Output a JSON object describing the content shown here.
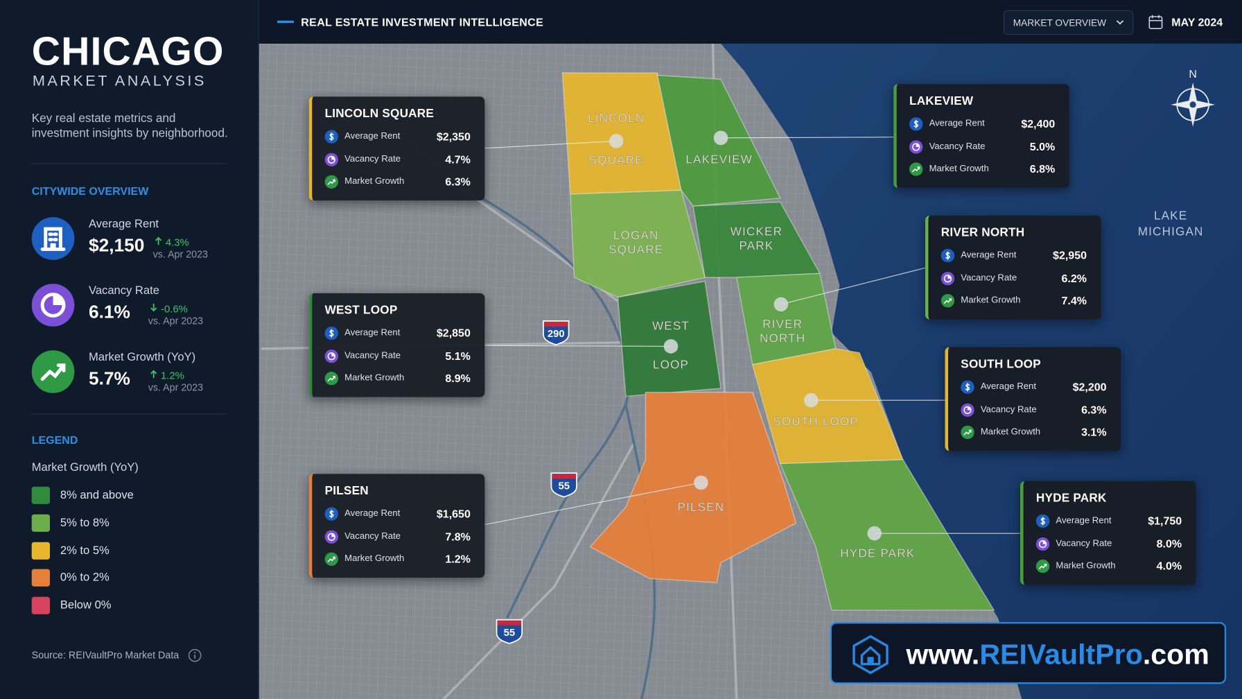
{
  "header": {
    "title": "REAL ESTATE INVESTMENT INTELLIGENCE",
    "dropdown": "MARKET OVERVIEW",
    "date": "MAY 2024"
  },
  "sidebar": {
    "city": "CHICAGO",
    "subtitle": "MARKET ANALYSIS",
    "description": [
      "Key real estate metrics and",
      "investment insights by neighborhood."
    ],
    "overview_title": "CITYWIDE OVERVIEW",
    "metrics": [
      {
        "label": "Average Rent",
        "value": "$2,150",
        "change": "4.3%",
        "comparison": "vs. Apr 2023"
      },
      {
        "label": "Vacancy Rate",
        "value": "6.1%",
        "change": "-0.6%",
        "comparison": "vs. Apr 2023"
      },
      {
        "label": "Market Growth (YoY)",
        "value": "5.7%",
        "change": "1.2%",
        "comparison": "vs. Apr 2023"
      }
    ],
    "legend_title": "LEGEND",
    "legend_subtitle": "Market Growth (YoY)",
    "legend_items": [
      {
        "label": "8% and above",
        "color": "#2f8a3d"
      },
      {
        "label": "5% to 8%",
        "color": "#6cae4c"
      },
      {
        "label": "2% to 5%",
        "color": "#e6b62e"
      },
      {
        "label": "0% to 2%",
        "color": "#e57f3a"
      },
      {
        "label": "Below 0%",
        "color": "#d6435c"
      }
    ],
    "source": "Source: REIVaultPro Market Data"
  },
  "neighborhoods": [
    {
      "name": "LINCOLN SQUARE",
      "metrics": [
        {
          "label": "Average Rent",
          "value": "$2,350"
        },
        {
          "label": "Vacancy Rate",
          "value": "4.7%"
        },
        {
          "label": "Market Growth",
          "value": "6.3%"
        }
      ]
    },
    {
      "name": "LAKEVIEW",
      "metrics": [
        {
          "label": "Average Rent",
          "value": "$2,400"
        },
        {
          "label": "Vacancy Rate",
          "value": "5.0%"
        },
        {
          "label": "Market Growth",
          "value": "6.8%"
        }
      ]
    },
    {
      "name": "WEST LOOP",
      "metrics": [
        {
          "label": "Average Rent",
          "value": "$2,850"
        },
        {
          "label": "Vacancy Rate",
          "value": "5.1%"
        },
        {
          "label": "Market Growth",
          "value": "8.9%"
        }
      ]
    },
    {
      "name": "RIVER NORTH",
      "metrics": [
        {
          "label": "Average Rent",
          "value": "$2,950"
        },
        {
          "label": "Vacancy Rate",
          "value": "6.2%"
        },
        {
          "label": "Market Growth",
          "value": "7.4%"
        }
      ]
    },
    {
      "name": "SOUTH LOOP",
      "metrics": [
        {
          "label": "Average Rent",
          "value": "$2,200"
        },
        {
          "label": "Vacancy Rate",
          "value": "6.3%"
        },
        {
          "label": "Market Growth",
          "value": "3.1%"
        }
      ]
    },
    {
      "name": "PILSEN",
      "metrics": [
        {
          "label": "Average Rent",
          "value": "$1,650"
        },
        {
          "label": "Vacancy Rate",
          "value": "7.8%"
        },
        {
          "label": "Market Growth",
          "value": "1.2%"
        }
      ]
    },
    {
      "name": "HYDE PARK",
      "metrics": [
        {
          "label": "Average Rent",
          "value": "$1,750"
        },
        {
          "label": "Vacancy Rate",
          "value": "8.0%"
        },
        {
          "label": "Market Growth",
          "value": "4.0%"
        }
      ]
    }
  ],
  "map_labels": [
    [
      "LINCOLN",
      "SQUARE"
    ],
    [
      "LAKEVIEW"
    ],
    [
      "LOGAN",
      "SQUARE"
    ],
    [
      "WICKER",
      "PARK"
    ],
    [
      "WEST",
      "LOOP"
    ],
    [
      "RIVER",
      "NORTH"
    ],
    [
      "SOUTH LOOP"
    ],
    [
      "PILSEN"
    ],
    [
      "HYDE PARK"
    ],
    [
      "LAKE",
      "MICHIGAN"
    ]
  ],
  "highways": [
    "290",
    "55",
    "55"
  ],
  "compass": "N",
  "footer": {
    "prefix": "www.",
    "brand": "REIVaultPro",
    "suffix": ".com"
  }
}
